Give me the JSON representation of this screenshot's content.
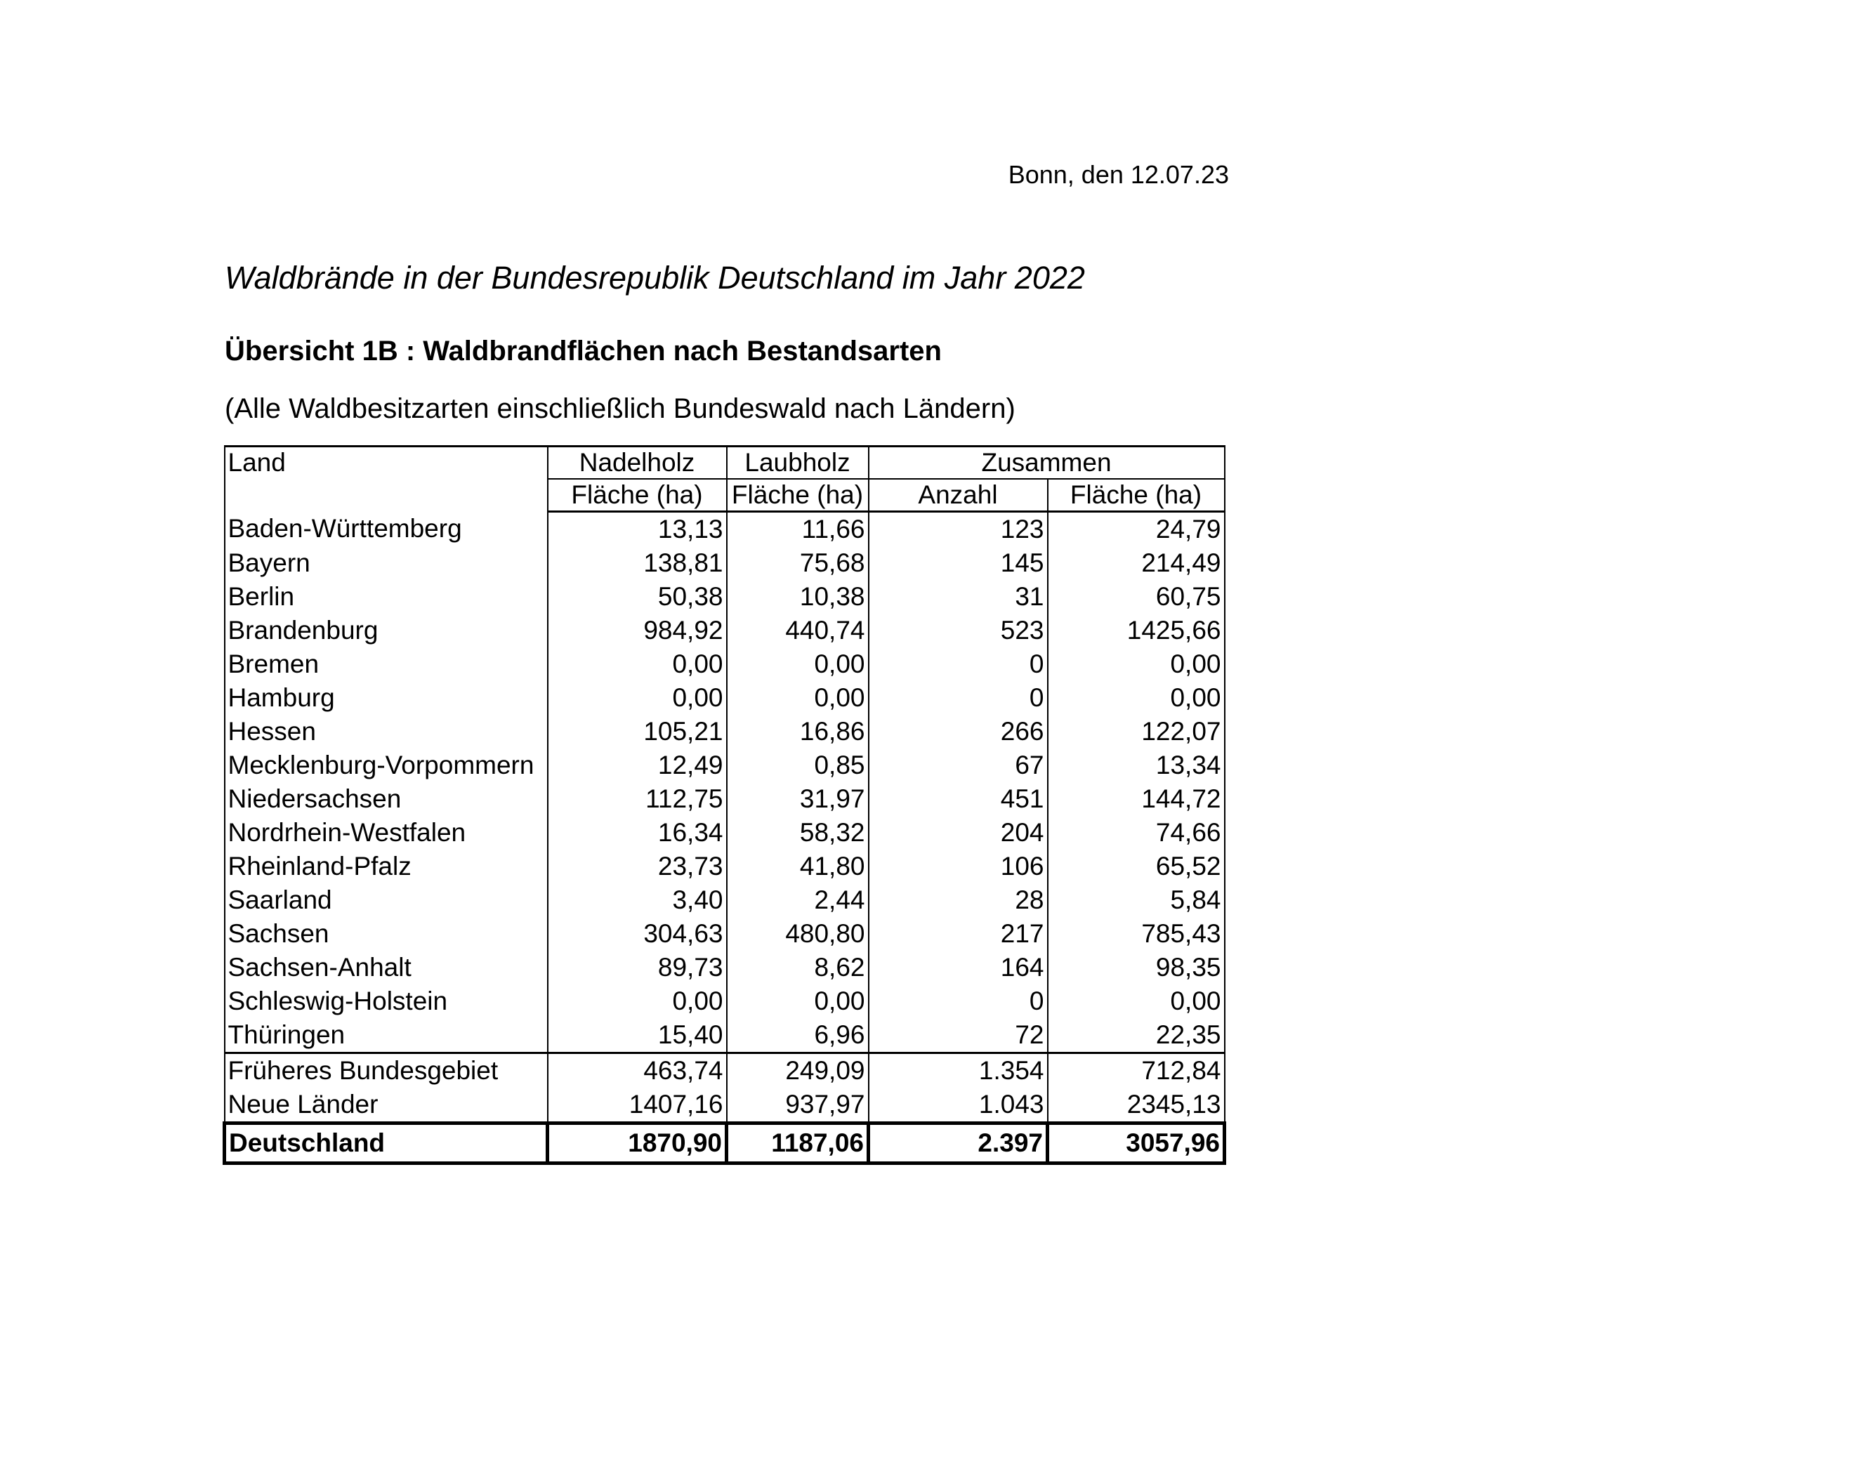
{
  "date_line": "Bonn, den 12.07.23",
  "title": "Waldbrände in der Bundesrepublik Deutschland im Jahr 2022",
  "subtitle": "Übersicht 1B : Waldbrandflächen nach Bestandsarten",
  "note": "(Alle Waldbesitzarten einschließlich Bundeswald nach Ländern)",
  "table": {
    "header": {
      "land": "Land",
      "nadelholz": "Nadelholz",
      "laubholz": "Laubholz",
      "zusammen": "Zusammen",
      "flaeche_nadel": "Fläche (ha)",
      "flaeche_laub": "Fläche (ha)",
      "anzahl": "Anzahl",
      "flaeche_zus": "Fläche (ha)"
    },
    "rows": [
      {
        "land": "Baden-Württemberg",
        "nadel": "13,13",
        "laub": "11,66",
        "anzahl": "123",
        "flaeche": "24,79"
      },
      {
        "land": "Bayern",
        "nadel": "138,81",
        "laub": "75,68",
        "anzahl": "145",
        "flaeche": "214,49"
      },
      {
        "land": "Berlin",
        "nadel": "50,38",
        "laub": "10,38",
        "anzahl": "31",
        "flaeche": "60,75"
      },
      {
        "land": "Brandenburg",
        "nadel": "984,92",
        "laub": "440,74",
        "anzahl": "523",
        "flaeche": "1425,66"
      },
      {
        "land": "Bremen",
        "nadel": "0,00",
        "laub": "0,00",
        "anzahl": "0",
        "flaeche": "0,00"
      },
      {
        "land": "Hamburg",
        "nadel": "0,00",
        "laub": "0,00",
        "anzahl": "0",
        "flaeche": "0,00"
      },
      {
        "land": "Hessen",
        "nadel": "105,21",
        "laub": "16,86",
        "anzahl": "266",
        "flaeche": "122,07"
      },
      {
        "land": "Mecklenburg-Vorpommern",
        "nadel": "12,49",
        "laub": "0,85",
        "anzahl": "67",
        "flaeche": "13,34"
      },
      {
        "land": "Niedersachsen",
        "nadel": "112,75",
        "laub": "31,97",
        "anzahl": "451",
        "flaeche": "144,72"
      },
      {
        "land": "Nordrhein-Westfalen",
        "nadel": "16,34",
        "laub": "58,32",
        "anzahl": "204",
        "flaeche": "74,66"
      },
      {
        "land": "Rheinland-Pfalz",
        "nadel": "23,73",
        "laub": "41,80",
        "anzahl": "106",
        "flaeche": "65,52"
      },
      {
        "land": "Saarland",
        "nadel": "3,40",
        "laub": "2,44",
        "anzahl": "28",
        "flaeche": "5,84"
      },
      {
        "land": "Sachsen",
        "nadel": "304,63",
        "laub": "480,80",
        "anzahl": "217",
        "flaeche": "785,43"
      },
      {
        "land": "Sachsen-Anhalt",
        "nadel": "89,73",
        "laub": "8,62",
        "anzahl": "164",
        "flaeche": "98,35"
      },
      {
        "land": "Schleswig-Holstein",
        "nadel": "0,00",
        "laub": "0,00",
        "anzahl": "0",
        "flaeche": "0,00"
      },
      {
        "land": "Thüringen",
        "nadel": "15,40",
        "laub": "6,96",
        "anzahl": "72",
        "flaeche": "22,35"
      }
    ],
    "subtotals": [
      {
        "land": "Früheres Bundesgebiet",
        "nadel": "463,74",
        "laub": "249,09",
        "anzahl": "1.354",
        "flaeche": "712,84"
      },
      {
        "land": "Neue Länder",
        "nadel": "1407,16",
        "laub": "937,97",
        "anzahl": "1.043",
        "flaeche": "2345,13"
      }
    ],
    "total": {
      "land": "Deutschland",
      "nadel": "1870,90",
      "laub": "1187,06",
      "anzahl": "2.397",
      "flaeche": "3057,96"
    }
  }
}
